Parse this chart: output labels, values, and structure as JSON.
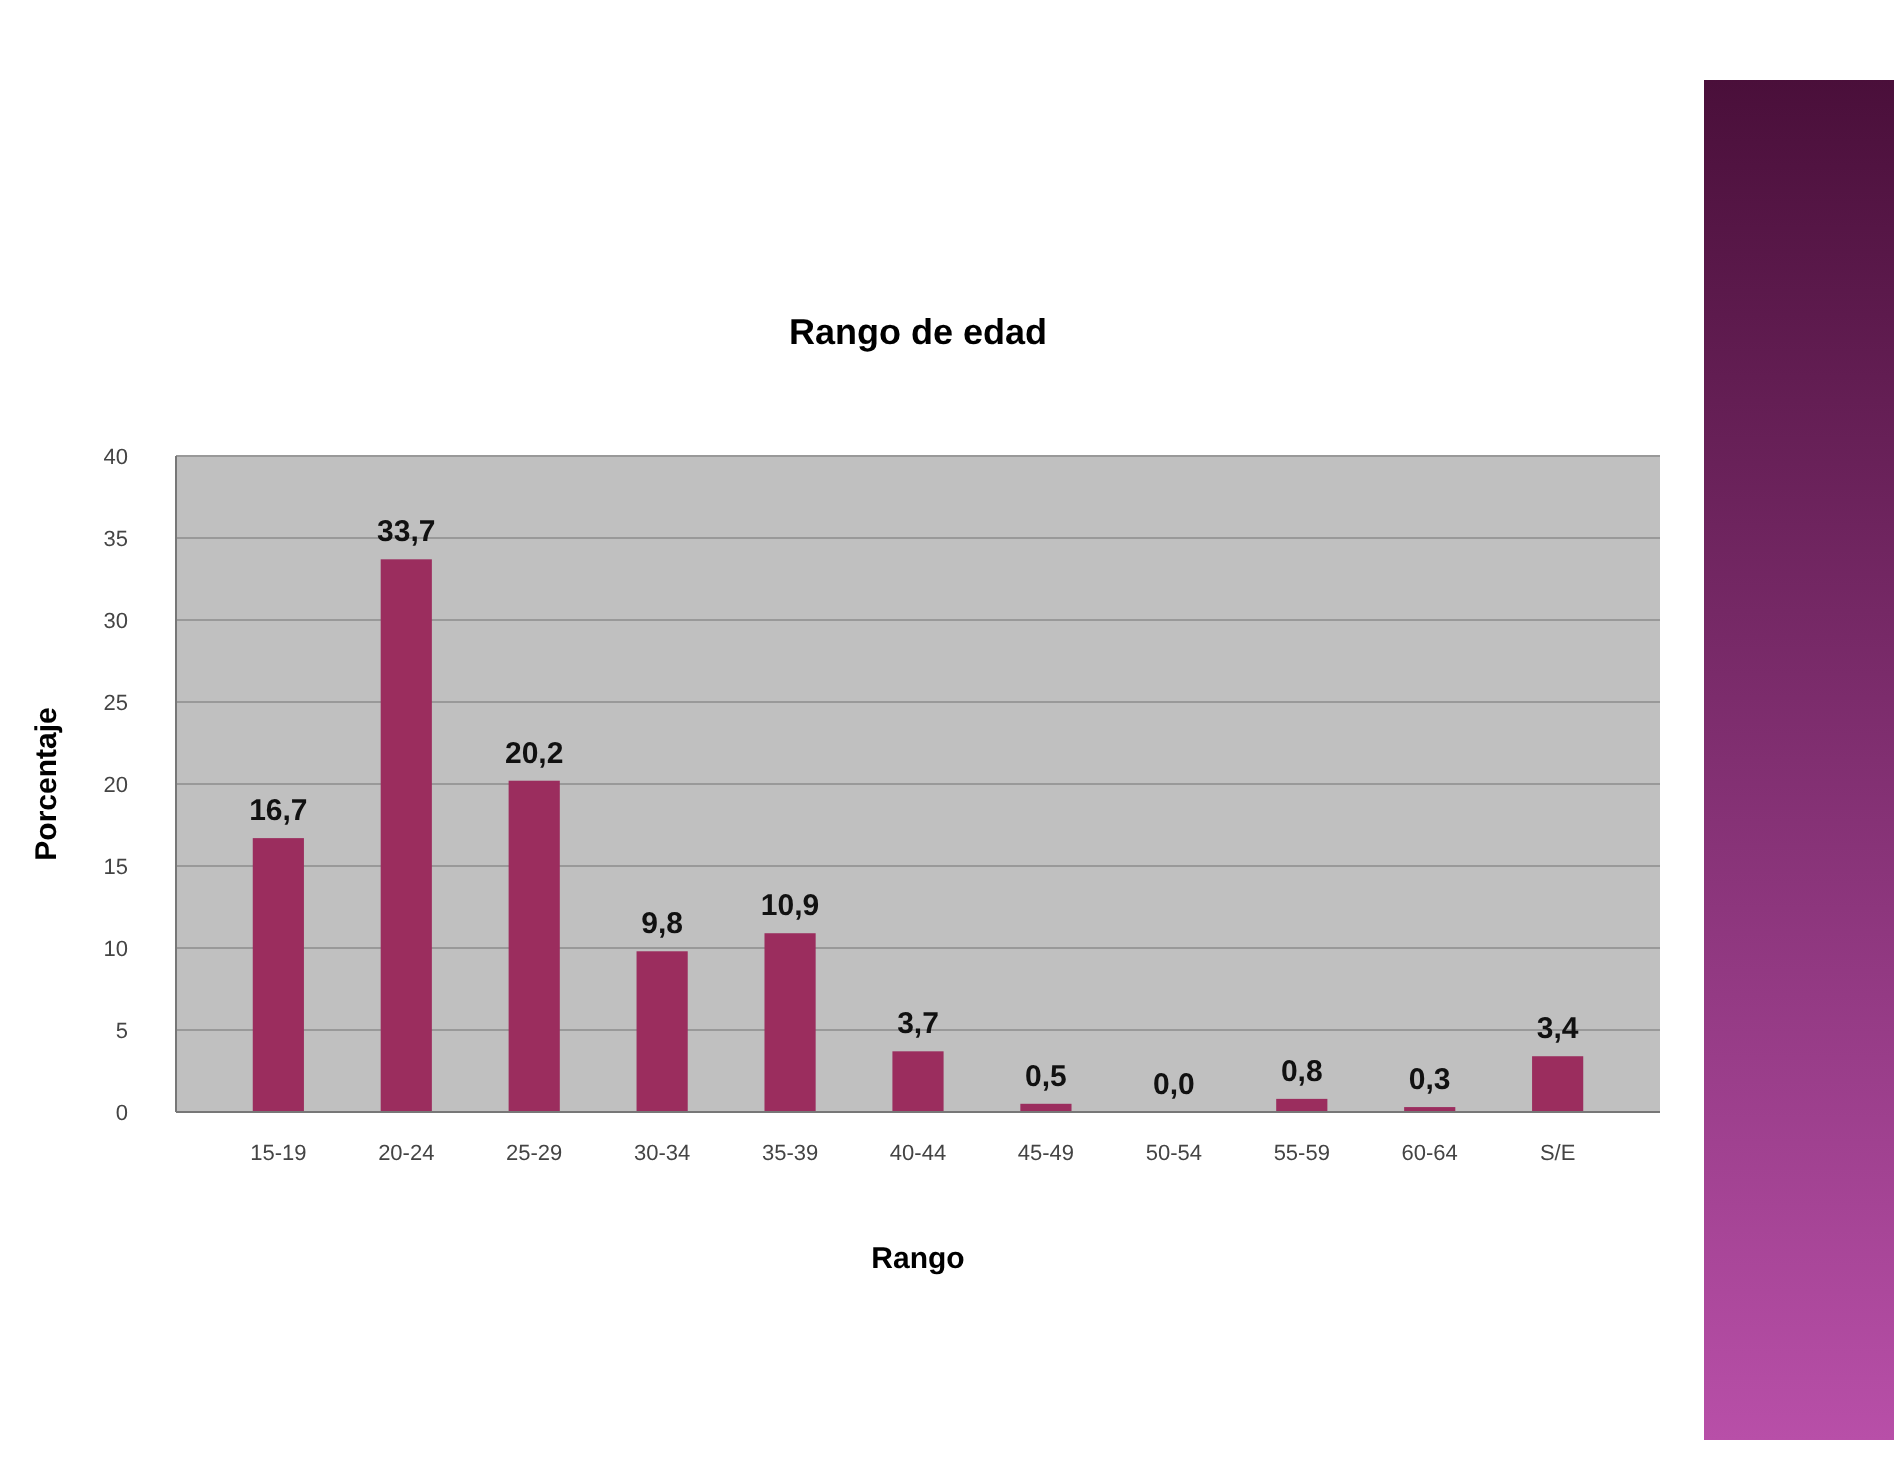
{
  "chart_data": {
    "type": "bar",
    "title": "Rango de edad",
    "xlabel": "Rango",
    "ylabel": "Porcentaje",
    "categories": [
      "15-19",
      "20-24",
      "25-29",
      "30-34",
      "35-39",
      "40-44",
      "45-49",
      "50-54",
      "55-59",
      "60-64",
      "S/E"
    ],
    "values": [
      16.7,
      33.7,
      20.2,
      9.8,
      10.9,
      3.7,
      0.5,
      0.0,
      0.8,
      0.3,
      3.4
    ],
    "value_labels": [
      "16,7",
      "33,7",
      "20,2",
      "9,8",
      "10,9",
      "3,7",
      "0,5",
      "0,0",
      "0,8",
      "0,3",
      "3,4"
    ],
    "color": "#9b2d5e",
    "ylim": [
      0,
      40
    ],
    "yticks": [
      0,
      5,
      10,
      15,
      20,
      25,
      30,
      35,
      40
    ],
    "grid": "y"
  }
}
